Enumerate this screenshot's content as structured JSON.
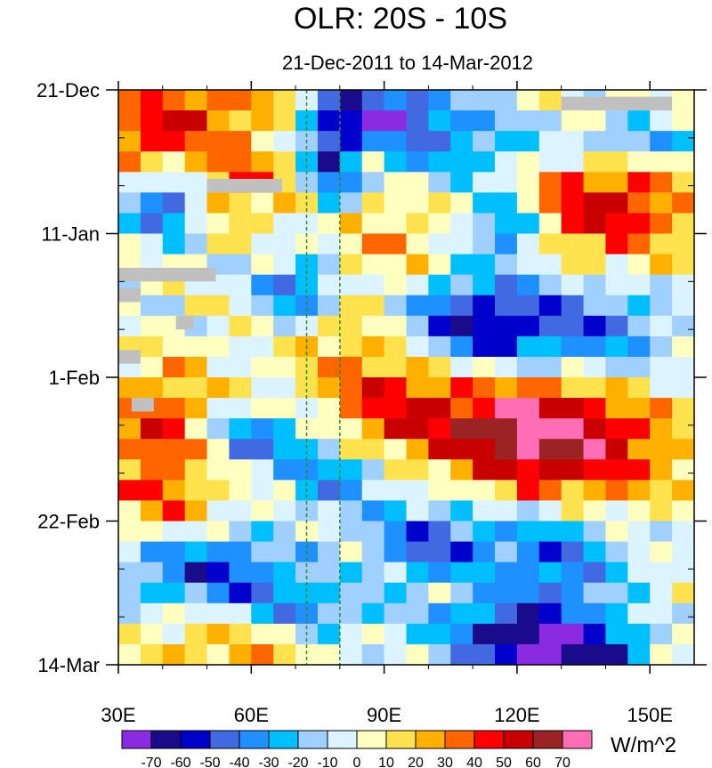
{
  "chart_data": {
    "type": "heatmap",
    "title": "OLR: 20S - 10S",
    "subtitle": "21-Dec-2011 to 14-Mar-2012",
    "x_axis": {
      "range": [
        30,
        160
      ],
      "ticks": [
        30,
        60,
        90,
        120,
        150
      ],
      "tick_labels": [
        "30E",
        "60E",
        "90E",
        "120E",
        "150E"
      ]
    },
    "y_axis": {
      "range_days": [
        0,
        84
      ],
      "ticks_days": [
        0,
        21,
        42,
        63,
        84
      ],
      "tick_labels": [
        "21-Dec",
        "11-Jan",
        "1-Feb",
        "22-Feb",
        "14-Mar"
      ],
      "direction": "time increases downward"
    },
    "reference_lines_lon": [
      72.5,
      80
    ],
    "reference_line_color": "#2e8b2e",
    "colorbar": {
      "levels": [
        "-70",
        "-60",
        "-50",
        "-40",
        "-30",
        "-20",
        "-10",
        "0",
        "10",
        "20",
        "30",
        "40",
        "50",
        "60",
        "70"
      ],
      "colors": [
        "#8a2be2",
        "#1a0b8c",
        "#0000cd",
        "#4169e1",
        "#1e90ff",
        "#00bfff",
        "#a0d0ff",
        "#dcf4ff",
        "#ffffc0",
        "#ffe24d",
        "#ffb000",
        "#ff6600",
        "#ff0000",
        "#c80000",
        "#9b2323",
        "#ff6eb4"
      ],
      "units": "W/m^2"
    },
    "missing_color": "#c0c0c0",
    "grid_nodes_lon": [
      30,
      35,
      40,
      45,
      50,
      55,
      60,
      65,
      70,
      75,
      80,
      85,
      90,
      95,
      100,
      105,
      110,
      115,
      120,
      125,
      130,
      135,
      140,
      145,
      150,
      155,
      160
    ],
    "grid_nodes_day": [
      0,
      3,
      6,
      9,
      12,
      15,
      18,
      21,
      24,
      27,
      30,
      33,
      36,
      39,
      42,
      45,
      48,
      51,
      54,
      57,
      60,
      63,
      66,
      69,
      72,
      75,
      78,
      81,
      84
    ],
    "features": [
      {
        "type": "anomaly",
        "lon": 38,
        "day": 6,
        "value": 45,
        "spread_lon": 8,
        "spread_day": 4
      },
      {
        "type": "anomaly",
        "lon": 55,
        "day": 2,
        "value": 30,
        "spread_lon": 12,
        "spread_day": 4
      },
      {
        "type": "anomaly",
        "lon": 88,
        "day": 3,
        "value": -55,
        "spread_lon": 10,
        "spread_day": 3
      },
      {
        "type": "anomaly",
        "lon": 78,
        "day": 10,
        "value": -55,
        "spread_lon": 4,
        "spread_day": 5
      },
      {
        "type": "anomaly",
        "lon": 105,
        "day": 8,
        "value": -35,
        "spread_lon": 15,
        "spread_day": 5
      },
      {
        "type": "anomaly",
        "lon": 145,
        "day": 8,
        "value": -45,
        "spread_lon": 12,
        "spread_day": 3
      },
      {
        "type": "anomaly",
        "lon": 140,
        "day": 16,
        "value": 55,
        "spread_lon": 14,
        "spread_day": 7
      },
      {
        "type": "anomaly",
        "lon": 58,
        "day": 13,
        "value": 35,
        "spread_lon": 8,
        "spread_day": 4
      },
      {
        "type": "anomaly",
        "lon": 40,
        "day": 17,
        "value": -50,
        "spread_lon": 6,
        "spread_day": 3
      },
      {
        "type": "anomaly",
        "lon": 118,
        "day": 20,
        "value": -50,
        "spread_lon": 6,
        "spread_day": 3
      },
      {
        "type": "anomaly",
        "lon": 92,
        "day": 22,
        "value": 20,
        "spread_lon": 10,
        "spread_day": 8
      },
      {
        "type": "anomaly",
        "lon": 70,
        "day": 29,
        "value": -45,
        "spread_lon": 6,
        "spread_day": 3
      },
      {
        "type": "anomaly",
        "lon": 112,
        "day": 34,
        "value": -65,
        "spread_lon": 14,
        "spread_day": 5
      },
      {
        "type": "anomaly",
        "lon": 140,
        "day": 36,
        "value": -35,
        "spread_lon": 12,
        "spread_day": 6
      },
      {
        "type": "anomaly",
        "lon": 85,
        "day": 40,
        "value": 25,
        "spread_lon": 10,
        "spread_day": 6
      },
      {
        "type": "anomaly",
        "lon": 40,
        "day": 49,
        "value": 45,
        "spread_lon": 8,
        "spread_day": 6
      },
      {
        "type": "anomaly",
        "lon": 125,
        "day": 50,
        "value": 68,
        "spread_lon": 12,
        "spread_day": 6
      },
      {
        "type": "anomaly",
        "lon": 100,
        "day": 48,
        "value": 40,
        "spread_lon": 14,
        "spread_day": 6
      },
      {
        "type": "anomaly",
        "lon": 145,
        "day": 52,
        "value": 30,
        "spread_lon": 12,
        "spread_day": 8
      },
      {
        "type": "anomaly",
        "lon": 62,
        "day": 51,
        "value": -40,
        "spread_lon": 10,
        "spread_day": 3
      },
      {
        "type": "anomaly",
        "lon": 80,
        "day": 57,
        "value": -40,
        "spread_lon": 8,
        "spread_day": 3
      },
      {
        "type": "anomaly",
        "lon": 40,
        "day": 60,
        "value": 25,
        "spread_lon": 10,
        "spread_day": 5
      },
      {
        "type": "anomaly",
        "lon": 100,
        "day": 66,
        "value": -45,
        "spread_lon": 10,
        "spread_day": 4
      },
      {
        "type": "anomaly",
        "lon": 50,
        "day": 70,
        "value": -50,
        "spread_lon": 14,
        "spread_day": 4
      },
      {
        "type": "anomaly",
        "lon": 130,
        "day": 68,
        "value": -40,
        "spread_lon": 12,
        "spread_day": 5
      },
      {
        "type": "anomaly",
        "lon": 70,
        "day": 76,
        "value": -35,
        "spread_lon": 12,
        "spread_day": 3
      },
      {
        "type": "anomaly",
        "lon": 120,
        "day": 79,
        "value": -45,
        "spread_lon": 14,
        "spread_day": 4
      },
      {
        "type": "anomaly",
        "lon": 55,
        "day": 81,
        "value": 30,
        "spread_lon": 12,
        "spread_day": 4
      },
      {
        "type": "anomaly",
        "lon": 130,
        "day": 82,
        "value": -60,
        "spread_lon": 12,
        "spread_day": 3
      },
      {
        "type": "missing",
        "lon": [
          130,
          155
        ],
        "day": [
          1,
          3
        ]
      },
      {
        "type": "missing",
        "lon": [
          50,
          67
        ],
        "day": [
          13,
          15
        ]
      },
      {
        "type": "missing",
        "lon": [
          30,
          52
        ],
        "day": [
          26,
          28
        ]
      },
      {
        "type": "missing",
        "lon": [
          30,
          35
        ],
        "day": [
          29,
          31
        ]
      },
      {
        "type": "missing",
        "lon": [
          43,
          47
        ],
        "day": [
          33,
          35
        ]
      },
      {
        "type": "missing",
        "lon": [
          30,
          35
        ],
        "day": [
          38,
          40
        ]
      },
      {
        "type": "missing",
        "lon": [
          33,
          38
        ],
        "day": [
          45,
          47
        ]
      }
    ]
  }
}
